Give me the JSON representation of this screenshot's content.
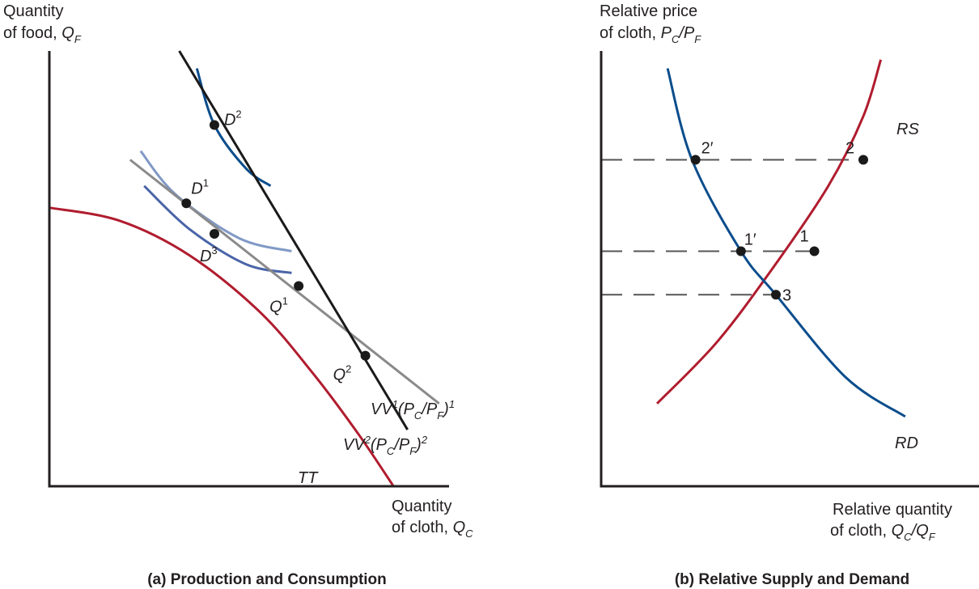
{
  "colors": {
    "axis": "#231f20",
    "tt_curve": "#b01c2e",
    "vv1_line": "#8a8a8a",
    "vv2_line": "#1a1a1a",
    "d2_curve": "#0a4d8c",
    "d1_curve": "#8199c6",
    "d3_curve": "#4a64a8",
    "rs_curve": "#b01c2e",
    "rd_curve": "#0a4d8c",
    "dash": "#555555",
    "point": "#1a1a1a"
  },
  "chart_data": [
    {
      "type": "line",
      "panel": "a",
      "caption": "(a) Production and Consumption",
      "ylabel": {
        "line1": "Quantity",
        "line2": "of food,",
        "symbol": "Q",
        "sub": "F"
      },
      "xlabel": {
        "line1": "Quantity",
        "line2": "of cloth,",
        "symbol": "Q",
        "sub": "C"
      },
      "xlim": [
        0,
        10
      ],
      "ylim": [
        0,
        10
      ],
      "grid": false,
      "series": [
        {
          "name": "TT",
          "label": "TT",
          "kind": "production-possibility-frontier",
          "points": [
            [
              0,
              6.4
            ],
            [
              2,
              6.1
            ],
            [
              4,
              5.3
            ],
            [
              6,
              4.0
            ],
            [
              7.5,
              2.6
            ],
            [
              8.8,
              1.2
            ],
            [
              9.8,
              0
            ]
          ]
        },
        {
          "name": "VV1",
          "label": {
            "base": "VV",
            "sup": "1",
            "paren": "(P",
            "sub1": "C",
            "slash": "/P",
            "sub2": "F",
            "close": ")",
            "sup2": "1"
          },
          "kind": "isovalue-line",
          "points": [
            [
              2.3,
              7.5
            ],
            [
              11.1,
              1.9
            ]
          ]
        },
        {
          "name": "VV2",
          "label": {
            "base": "VV",
            "sup": "2",
            "paren": "(P",
            "sub1": "C",
            "slash": "/P",
            "sub2": "F",
            "close": ")",
            "sup2": "2"
          },
          "kind": "isovalue-line",
          "points": [
            [
              3.7,
              10.0
            ],
            [
              10.2,
              1.3
            ]
          ]
        },
        {
          "name": "D2-indifference",
          "kind": "indifference-curve",
          "points": [
            [
              4.2,
              9.6
            ],
            [
              4.7,
              8.3
            ],
            [
              5.6,
              7.3
            ],
            [
              6.3,
              6.9
            ]
          ]
        },
        {
          "name": "D1-indifference",
          "kind": "indifference-curve",
          "points": [
            [
              2.6,
              7.7
            ],
            [
              3.6,
              6.7
            ],
            [
              5.4,
              5.7
            ],
            [
              6.9,
              5.4
            ]
          ]
        },
        {
          "name": "D3-indifference",
          "kind": "indifference-curve",
          "points": [
            [
              2.7,
              6.9
            ],
            [
              4.0,
              5.9
            ],
            [
              5.6,
              5.1
            ],
            [
              6.9,
              4.9
            ]
          ]
        }
      ],
      "points": [
        {
          "name": "D2",
          "label": "D",
          "sup": "2",
          "x": 4.7,
          "y": 8.3
        },
        {
          "name": "D1",
          "label": "D",
          "sup": "1",
          "x": 3.9,
          "y": 6.5
        },
        {
          "name": "D3",
          "label": "D",
          "sup": "3",
          "x": 4.7,
          "y": 5.8
        },
        {
          "name": "Q1",
          "label": "Q",
          "sup": "1",
          "x": 7.1,
          "y": 4.6
        },
        {
          "name": "Q2",
          "label": "Q",
          "sup": "2",
          "x": 9.0,
          "y": 3.0
        }
      ]
    },
    {
      "type": "line",
      "panel": "b",
      "caption": "(b) Relative Supply and Demand",
      "ylabel": {
        "line1": "Relative price",
        "line2": "of cloth,",
        "symbol": "P",
        "sub": "C",
        "slash": "/P",
        "sub2": "F"
      },
      "xlabel": {
        "line1": "Relative quantity",
        "line2": "of cloth,",
        "symbol": "Q",
        "sub": "C",
        "slash": "/Q",
        "sub2": "F"
      },
      "xlim": [
        0,
        10
      ],
      "ylim": [
        0,
        10
      ],
      "grid": false,
      "series": [
        {
          "name": "RS",
          "label": "RS",
          "kind": "relative-supply",
          "points": [
            [
              1.6,
              1.9
            ],
            [
              3.3,
              3.3
            ],
            [
              4.9,
              5.0
            ],
            [
              6.5,
              6.9
            ],
            [
              7.5,
              8.5
            ],
            [
              8.0,
              9.8
            ]
          ]
        },
        {
          "name": "RD",
          "label": "RD",
          "kind": "relative-demand",
          "points": [
            [
              1.9,
              9.6
            ],
            [
              2.6,
              7.5
            ],
            [
              4.0,
              5.4
            ],
            [
              5.0,
              4.4
            ],
            [
              7.0,
              2.5
            ],
            [
              8.7,
              1.6
            ]
          ]
        }
      ],
      "points": [
        {
          "name": "2prime",
          "label": "2′",
          "x": 2.7,
          "y": 7.5
        },
        {
          "name": "2",
          "label": "2",
          "x": 7.5,
          "y": 7.5
        },
        {
          "name": "1prime",
          "label": "1′",
          "x": 4.0,
          "y": 5.4
        },
        {
          "name": "1",
          "label": "1",
          "x": 6.1,
          "y": 5.4
        },
        {
          "name": "3",
          "label": "3",
          "x": 5.0,
          "y": 4.4
        }
      ],
      "dashed_levels": [
        {
          "name": "price-2",
          "y": 7.5,
          "to_x": 7.5
        },
        {
          "name": "price-1",
          "y": 5.4,
          "to_x": 6.1
        },
        {
          "name": "price-3",
          "y": 4.4,
          "to_x": 5.0
        }
      ]
    }
  ]
}
